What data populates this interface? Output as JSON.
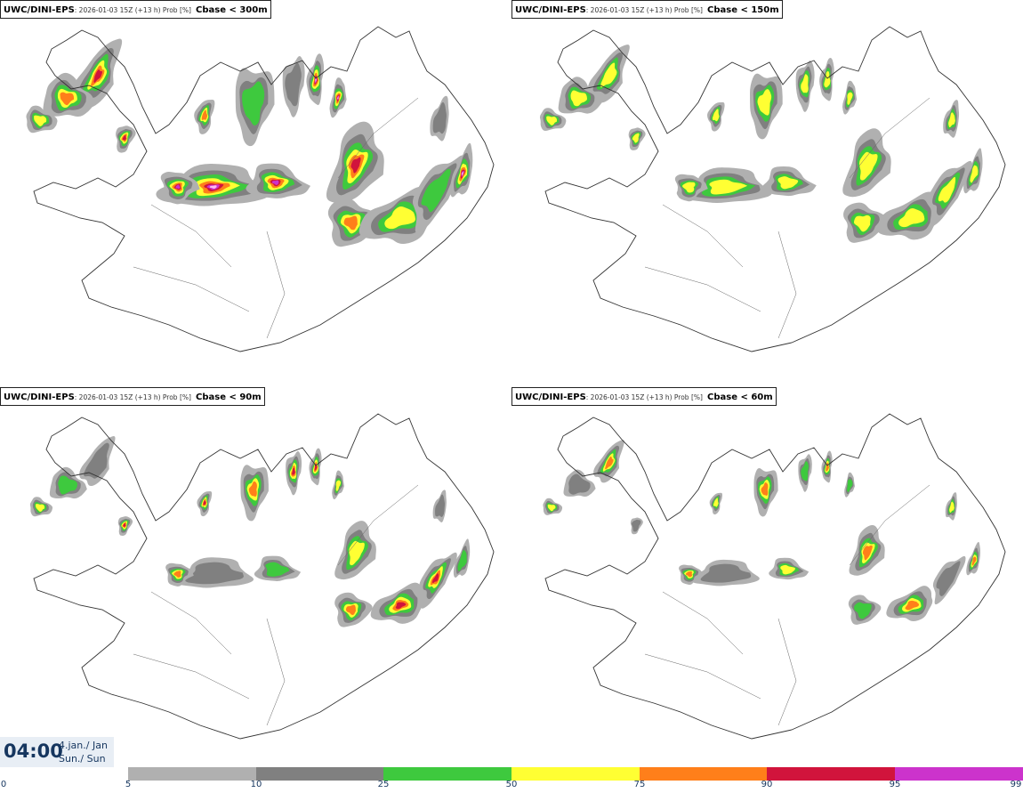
{
  "panels": [
    {
      "model": "UWC/DINI-EPS",
      "meta": ": 2026-01-03 15Z (+13 h) Prob [%]",
      "cbase": "Cbase < 300m",
      "intensity": 4
    },
    {
      "model": "UWC/DINI-EPS",
      "meta": ": 2026-01-03 15Z (+13 h) Prob [%]",
      "cbase": "Cbase < 150m",
      "intensity": 3
    },
    {
      "model": "UWC/DINI-EPS",
      "meta": ": 2026-01-03 15Z (+13 h) Prob [%]",
      "cbase": "Cbase < 90m",
      "intensity": 2
    },
    {
      "model": "UWC/DINI-EPS",
      "meta": ": 2026-01-03 15Z (+13 h) Prob [%]",
      "cbase": "Cbase < 60m",
      "intensity": 1
    }
  ],
  "time": {
    "clock": "04:00",
    "date_line1": "4.jan./ Jan",
    "date_line2": "Sun./ Sun"
  },
  "legend": {
    "ticks": [
      "0",
      "5",
      "10",
      "25",
      "50",
      "75",
      "90",
      "95",
      "99"
    ],
    "colors": [
      "#b0b0b0",
      "#808080",
      "#3ec93e",
      "#ffff33",
      "#ff7f1a",
      "#d1143c",
      "#cc33cc",
      "#ffbbee"
    ]
  }
}
